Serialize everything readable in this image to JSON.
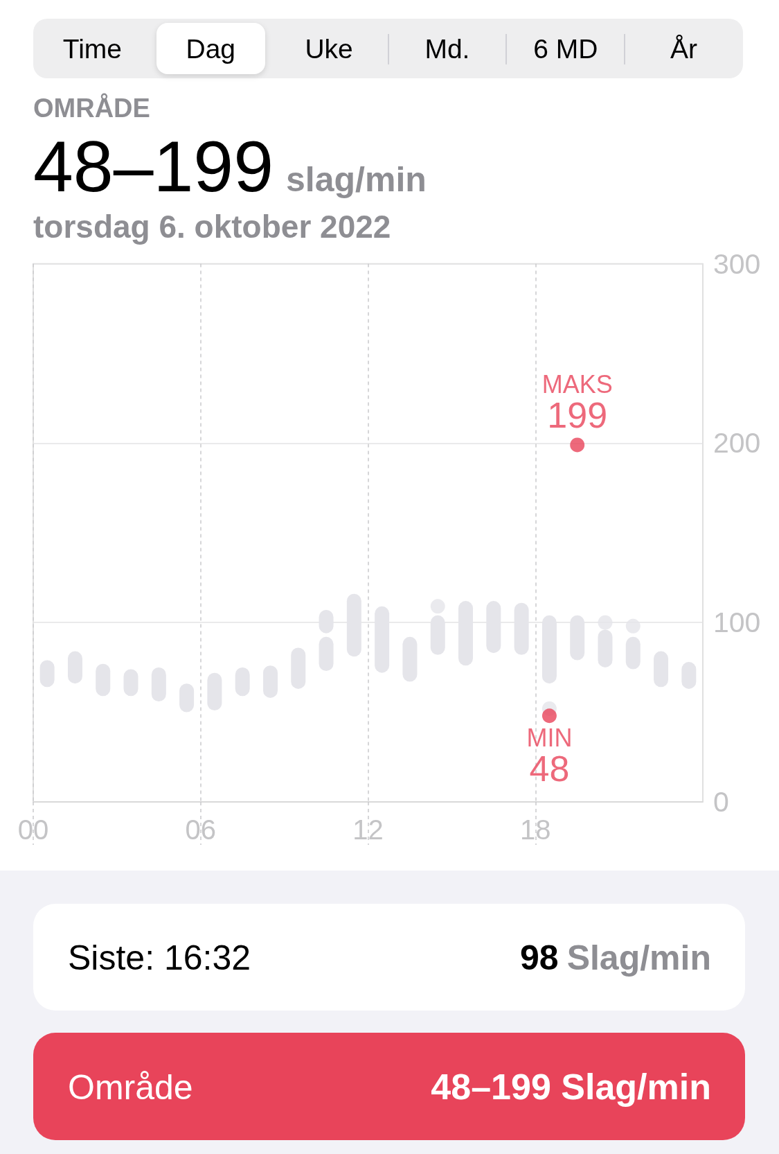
{
  "chart_data": {
    "type": "bar",
    "title": "48–199 slag/min",
    "subtitle": "torsdag 6. oktober 2022",
    "annotations": [
      "Time",
      "Dag",
      "Uke",
      "Md.",
      "6 MD",
      "År",
      "OMRÅDE",
      "Siste: 16:32",
      "98 Slag/min",
      "Område",
      "48–199 Slag/min"
    ],
    "x": [
      0.5,
      1.5,
      2.5,
      3.5,
      4.5,
      5.5,
      6.5,
      7.5,
      8.5,
      9.5,
      10.5,
      11.5,
      12.5,
      13.5,
      14.5,
      15.5,
      16.5,
      17.5,
      18.5,
      19.5,
      20.5,
      21.5,
      22.5,
      23.5
    ],
    "series": [
      {
        "color": "#e5e5ea",
        "base": [
          64,
          66,
          59,
          59,
          56,
          50,
          51,
          59,
          58,
          63,
          73,
          81,
          72,
          67,
          82,
          76,
          83,
          82,
          66,
          79,
          75,
          74,
          64,
          63
        ],
        "values": [
          15,
          18,
          18,
          15,
          19,
          16,
          21,
          16,
          18,
          23,
          19,
          35,
          37,
          25,
          22,
          36,
          29,
          29,
          38,
          25,
          21,
          18,
          20,
          15
        ]
      },
      {
        "color": "#e5e5ea",
        "x": [
          10.5
        ],
        "base": [
          94
        ],
        "values": [
          13
        ]
      },
      {
        "type": "scatter",
        "color": "#e5e5ea",
        "x": [
          14.5,
          18.5,
          20.5,
          21.5
        ],
        "values": [
          109,
          52,
          100,
          98
        ]
      },
      {
        "type": "scatter",
        "color": "#e8445a",
        "x": [
          18.5,
          19.5
        ],
        "values": [
          48,
          199
        ],
        "value_labels": [
          "MIN\n48",
          "MAKS\n199"
        ]
      }
    ],
    "xlim": [
      0,
      24
    ],
    "xticks": [
      {
        "value": 0,
        "label": "00"
      },
      {
        "value": 6,
        "label": "06"
      },
      {
        "value": 12,
        "label": "12"
      },
      {
        "value": 18,
        "label": "18"
      }
    ],
    "ylim": [
      0,
      300
    ],
    "yticks": [
      0,
      100,
      200,
      300
    ],
    "grid": true,
    "marker": "circle"
  }
}
